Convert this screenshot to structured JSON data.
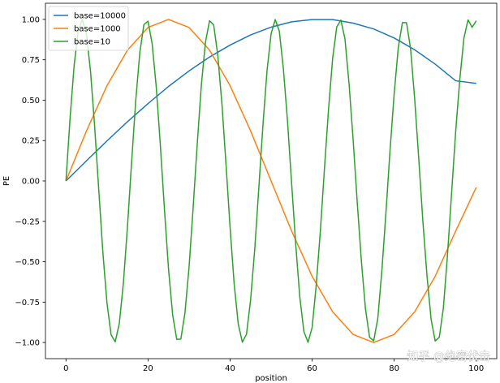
{
  "chart_data": {
    "type": "line",
    "xlabel": "position",
    "ylabel": "PE",
    "xlim": [
      -5,
      105
    ],
    "ylim": [
      -1.1,
      1.1
    ],
    "xticks": [
      0,
      20,
      40,
      60,
      80,
      100
    ],
    "yticks": [
      1.0,
      0.75,
      0.5,
      0.25,
      0.0,
      -0.25,
      -0.5,
      -0.75,
      -1.0
    ],
    "xtick_labels": [
      "0",
      "20",
      "40",
      "60",
      "80",
      "100"
    ],
    "ytick_labels": [
      "1.00",
      "0.75",
      "0.50",
      "0.25",
      "0.00",
      "−0.25",
      "−0.50",
      "−0.75",
      "−1.00"
    ],
    "grid": false,
    "legend_position": "top-left",
    "series": [
      {
        "name": "base=10000",
        "color": "#1f77b4",
        "x": [
          0,
          5,
          10,
          15,
          20,
          25,
          30,
          35,
          40,
          45,
          50,
          55,
          60,
          65,
          70,
          75,
          80,
          85,
          90,
          95,
          100
        ],
        "y": [
          0.0,
          0.125,
          0.248,
          0.367,
          0.479,
          0.585,
          0.681,
          0.767,
          0.841,
          0.904,
          0.952,
          0.985,
          0.999,
          0.999,
          0.977,
          0.941,
          0.885,
          0.812,
          0.723,
          0.62,
          0.604
        ]
      },
      {
        "name": "base=1000",
        "color": "#ff7f0e",
        "x": [
          0,
          5,
          10,
          15,
          20,
          25,
          30,
          35,
          40,
          45,
          50,
          55,
          60,
          65,
          70,
          75,
          80,
          85,
          90,
          95,
          100
        ],
        "y": [
          0.0,
          0.31,
          0.59,
          0.81,
          0.95,
          1.0,
          0.95,
          0.81,
          0.59,
          0.31,
          0.0,
          -0.31,
          -0.59,
          -0.81,
          -0.95,
          -1.0,
          -0.95,
          -0.81,
          -0.59,
          -0.31,
          -0.04
        ]
      },
      {
        "name": "base=10",
        "color": "#2ca02c",
        "x": [
          0,
          1,
          2,
          3,
          4,
          5,
          6,
          7,
          8,
          9,
          10,
          11,
          12,
          13,
          14,
          15,
          16,
          17,
          18,
          19,
          20,
          21,
          22,
          23,
          24,
          25,
          26,
          27,
          28,
          29,
          30,
          31,
          32,
          33,
          34,
          35,
          36,
          37,
          38,
          39,
          40,
          41,
          42,
          43,
          44,
          45,
          46,
          47,
          48,
          49,
          50,
          51,
          52,
          53,
          54,
          55,
          56,
          57,
          58,
          59,
          60,
          61,
          62,
          63,
          64,
          65,
          66,
          67,
          68,
          69,
          70,
          71,
          72,
          73,
          74,
          75,
          76,
          77,
          78,
          79,
          80,
          81,
          82,
          83,
          84,
          85,
          86,
          87,
          88,
          89,
          90,
          91,
          92,
          93,
          94,
          95,
          96,
          97,
          98,
          99,
          100
        ],
        "y": [
          0.0,
          0.389,
          0.717,
          0.932,
          0.999,
          0.909,
          0.675,
          0.335,
          -0.058,
          -0.443,
          -0.757,
          -0.952,
          -0.996,
          -0.882,
          -0.631,
          -0.279,
          0.117,
          0.496,
          0.794,
          0.968,
          0.989,
          0.851,
          0.584,
          0.223,
          -0.174,
          -0.546,
          -0.828,
          -0.981,
          -0.979,
          -0.817,
          -0.534,
          -0.165,
          0.231,
          0.594,
          0.859,
          0.992,
          0.966,
          0.779,
          0.482,
          0.106,
          -0.287,
          -0.639,
          -0.887,
          -0.998,
          -0.949,
          -0.737,
          -0.427,
          -0.046,
          0.341,
          0.681,
          0.911,
          0.999,
          0.928,
          0.692,
          0.37,
          -0.014,
          -0.393,
          -0.72,
          -0.933,
          -0.999,
          -0.907,
          -0.644,
          -0.312,
          0.074,
          0.444,
          0.759,
          0.953,
          0.996,
          0.88,
          0.601,
          0.253,
          -0.134,
          -0.494,
          -0.792,
          -0.967,
          -0.99,
          -0.853,
          -0.555,
          -0.193,
          0.193,
          0.541,
          0.825,
          0.98,
          0.98,
          0.819,
          0.506,
          0.133,
          -0.252,
          -0.588,
          -0.857,
          -0.991,
          -0.967,
          -0.784,
          -0.455,
          -0.073,
          0.31,
          0.631,
          0.885,
          0.997,
          0.951,
          0.991
        ]
      }
    ]
  },
  "watermark": "知乎 @绝密伏击"
}
